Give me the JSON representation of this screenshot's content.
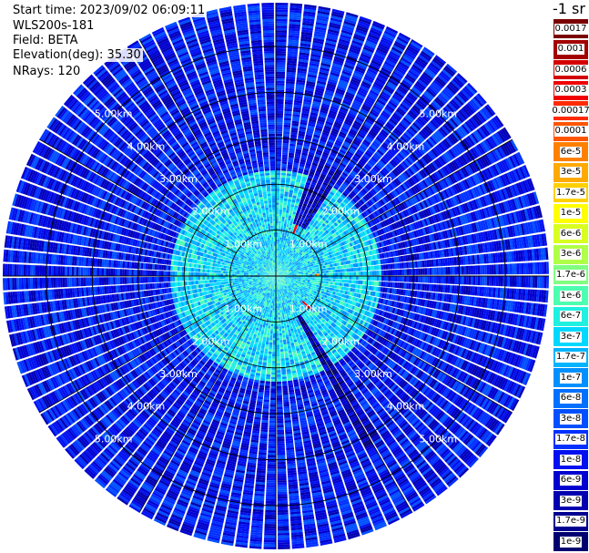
{
  "header": {
    "start_time": "Start time: 2023/09/02 06:09:11",
    "instrument": "WLS200s-181",
    "field": "Field: BETA",
    "elevation": "Elevation(deg): 35.30",
    "nrays": "NRays: 120"
  },
  "colorbar": {
    "unit": "-1 sr",
    "labels": [
      "0.0017",
      "0.001",
      "0.0006",
      "0.0003",
      "0.00017",
      "0.0001",
      "6e-5",
      "3e-5",
      "1.7e-5",
      "1e-5",
      "6e-6",
      "3e-6",
      "1.7e-6",
      "1e-6",
      "6e-7",
      "3e-7",
      "1.7e-7",
      "1e-7",
      "6e-8",
      "3e-8",
      "1.7e-8",
      "1e-8",
      "6e-9",
      "3e-9",
      "1.7e-9",
      "1e-9"
    ],
    "colors": [
      "#7a0000",
      "#a30000",
      "#d40000",
      "#f00000",
      "#ff2a00",
      "#ff5500",
      "#ff8000",
      "#ffaa00",
      "#ffd000",
      "#ffff00",
      "#d8ff20",
      "#b0ff48",
      "#80ff80",
      "#4dffb0",
      "#20f0e0",
      "#00d8ff",
      "#00b4ff",
      "#0090ff",
      "#0070ff",
      "#0050ff",
      "#0030ff",
      "#0010f0",
      "#0000d0",
      "#0000b0",
      "#000090",
      "#000070"
    ]
  },
  "chart_data": {
    "type": "heatmap",
    "projection": "polar PPI",
    "field": "BETA",
    "n_rays": 120,
    "range_rings_km": [
      1,
      2,
      3,
      4,
      5
    ],
    "range_ring_labels": [
      "1.00km",
      "2.00km",
      "3.00km",
      "4.00km",
      "5.00km"
    ],
    "max_range_km": 5.95,
    "value_scale": "log",
    "value_range": [
      1e-09,
      0.0017
    ],
    "features": [
      {
        "name": "near-field high backscatter",
        "range_km": [
          0.0,
          2.3
        ],
        "typical_value": 3e-07
      },
      {
        "name": "far-field background",
        "range_km": [
          2.3,
          5.95
        ],
        "typical_value": 1e-08
      },
      {
        "name": "strong echo NNE",
        "azimuth_deg": 22,
        "range_km": [
          1.0,
          1.25
        ],
        "typical_value": 0.0005
      },
      {
        "name": "strong echo SE",
        "azimuth_deg": 133,
        "range_km": [
          0.8,
          1.05
        ],
        "typical_value": 0.0008
      },
      {
        "name": "strong echo E",
        "azimuth_deg": 88,
        "range_km": [
          0.85,
          0.95
        ],
        "typical_value": 6e-05
      },
      {
        "name": "low-return sector NNE",
        "azimuth_deg": [
          18,
          32
        ],
        "range_km": [
          1.2,
          2.7
        ],
        "typical_value": 4e-09
      },
      {
        "name": "low-return streak SE",
        "azimuth_deg": [
          146,
          152
        ],
        "range_km": [
          1.0,
          4.2
        ],
        "typical_value": 3e-09
      }
    ]
  }
}
